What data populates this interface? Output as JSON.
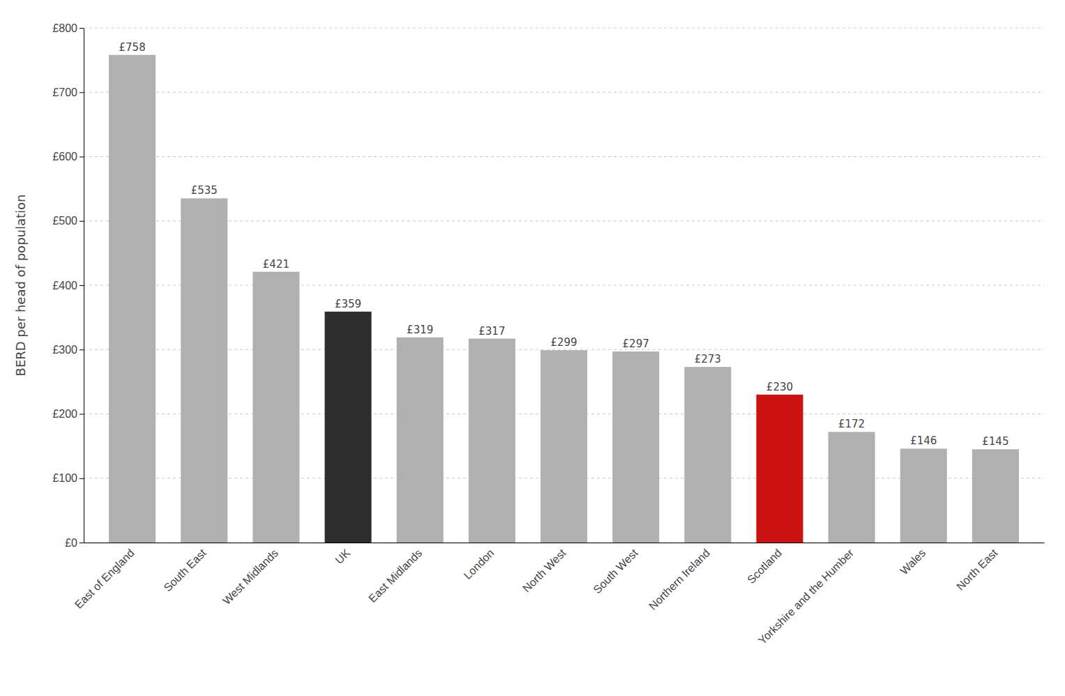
{
  "chart_data": {
    "type": "bar",
    "categories": [
      "East of England",
      "South East",
      "West Midlands",
      "UK",
      "East Midlands",
      "London",
      "North West",
      "South West",
      "Northern Ireland",
      "Scotland",
      "Yorkshire and the Humber",
      "Wales",
      "North East"
    ],
    "values": [
      758,
      535,
      421,
      359,
      319,
      317,
      299,
      297,
      273,
      230,
      172,
      146,
      145
    ],
    "value_labels": [
      "£758",
      "£535",
      "£421",
      "£359",
      "£319",
      "£317",
      "£299",
      "£297",
      "£273",
      "£230",
      "£172",
      "£146",
      "£145"
    ],
    "colors": [
      "#b0b0b0",
      "#b0b0b0",
      "#b0b0b0",
      "#2d2d2d",
      "#b0b0b0",
      "#b0b0b0",
      "#b0b0b0",
      "#b0b0b0",
      "#b0b0b0",
      "#cc1111",
      "#b0b0b0",
      "#b0b0b0",
      "#b0b0b0"
    ],
    "y_label": "BERD per head of population",
    "ylim": [
      0,
      800
    ],
    "yticks": [
      {
        "value": 0,
        "label": "£0"
      },
      {
        "value": 100,
        "label": "£100"
      },
      {
        "value": 200,
        "label": "£200"
      },
      {
        "value": 300,
        "label": "£300"
      },
      {
        "value": 400,
        "label": "£400"
      },
      {
        "value": 500,
        "label": "£500"
      },
      {
        "value": 600,
        "label": "£600"
      },
      {
        "value": 700,
        "label": "£700"
      },
      {
        "value": 800,
        "label": "£800"
      }
    ],
    "grid": true,
    "data_labels": true
  }
}
